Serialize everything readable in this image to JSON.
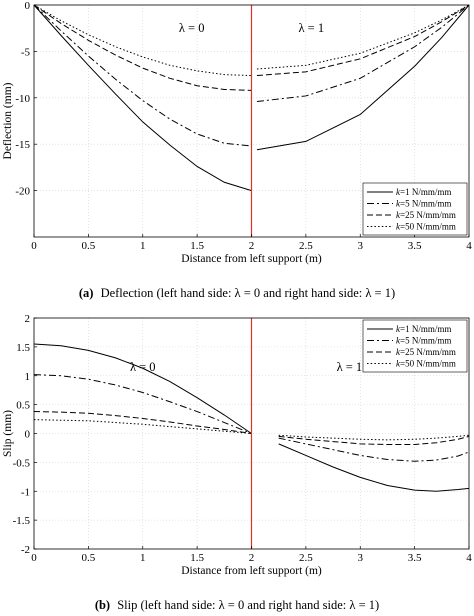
{
  "figure": {
    "panels": [
      {
        "caption_tag": "(a)",
        "caption_text": "Deflection (left hand side: λ = 0 and right hand side: λ = 1)"
      },
      {
        "caption_tag": "(b)",
        "caption_text": "Slip (left hand side: λ = 0 and right hand side: λ = 1)"
      }
    ]
  },
  "chart_data": [
    {
      "type": "line",
      "xlabel": "Distance from left support (m)",
      "ylabel": "Deflection (mm)",
      "xlim": [
        0,
        4
      ],
      "ylim": [
        -25,
        0
      ],
      "xticks": [
        0,
        0.5,
        1,
        1.5,
        2,
        2.5,
        3,
        3.5,
        4
      ],
      "xtick_labels": [
        "0",
        "0.5",
        "1",
        "1.5",
        "2",
        "2.5",
        "3",
        "3.5",
        "4"
      ],
      "yticks": [
        0,
        -5,
        -10,
        -15,
        -20
      ],
      "ytick_labels": [
        "0",
        "-5",
        "-10",
        "-15",
        "-20"
      ],
      "grid": true,
      "legend_position": "bottom-right",
      "vline_x": 2,
      "vline_color": "#d9352a",
      "region_labels": [
        {
          "text": "λ = 0",
          "x": 1.45,
          "y": -2.5
        },
        {
          "text": "λ = 1",
          "x": 2.55,
          "y": -2.5
        }
      ],
      "series": [
        {
          "name": "k=1 N/mm/mm",
          "k_label": "k",
          "rest_label": "=1 N/mm/mm",
          "dash": "solid",
          "x": [
            0,
            0.25,
            0.5,
            0.75,
            1.0,
            1.25,
            1.5,
            1.75,
            2.0,
            2.05,
            2.5,
            3.0,
            3.5,
            3.75,
            4.0
          ],
          "y": [
            0,
            -3.3,
            -6.5,
            -9.6,
            -12.6,
            -15.1,
            -17.4,
            -19.1,
            -20.0,
            -15.6,
            -14.7,
            -11.8,
            -6.6,
            -3.5,
            0
          ]
        },
        {
          "name": "k=5 N/mm/mm",
          "k_label": "k",
          "rest_label": "=5 N/mm/mm",
          "dash": "dashdot",
          "x": [
            0,
            0.25,
            0.5,
            0.75,
            1.0,
            1.25,
            1.5,
            1.75,
            2.0,
            2.05,
            2.5,
            3.0,
            3.5,
            3.75,
            4.0
          ],
          "y": [
            0,
            -2.8,
            -5.5,
            -8.0,
            -10.3,
            -12.3,
            -13.9,
            -14.9,
            -15.2,
            -10.4,
            -9.8,
            -7.9,
            -4.5,
            -2.4,
            0
          ]
        },
        {
          "name": "k=25 N/mm/mm",
          "k_label": "k",
          "rest_label": "=25 N/mm/mm",
          "dash": "dashed",
          "x": [
            0,
            0.25,
            0.5,
            0.75,
            1.0,
            1.25,
            1.5,
            1.75,
            2.0,
            2.05,
            2.5,
            3.0,
            3.5,
            3.75,
            4.0
          ],
          "y": [
            0,
            -2.0,
            -3.8,
            -5.4,
            -6.8,
            -7.9,
            -8.7,
            -9.1,
            -9.2,
            -7.6,
            -7.2,
            -5.8,
            -3.4,
            -1.8,
            0
          ]
        },
        {
          "name": "k=50 N/mm/mm",
          "k_label": "k",
          "rest_label": "=50 N/mm/mm",
          "dash": "dotted",
          "x": [
            0,
            0.25,
            0.5,
            0.75,
            1.0,
            1.25,
            1.5,
            1.75,
            2.0,
            2.05,
            2.5,
            3.0,
            3.5,
            3.75,
            4.0
          ],
          "y": [
            0,
            -1.7,
            -3.2,
            -4.5,
            -5.6,
            -6.5,
            -7.1,
            -7.5,
            -7.6,
            -6.9,
            -6.5,
            -5.2,
            -3.0,
            -1.6,
            0
          ]
        }
      ]
    },
    {
      "type": "line",
      "xlabel": "Distance from left support (m)",
      "ylabel": "Slip (mm)",
      "xlim": [
        0,
        4
      ],
      "ylim": [
        -2,
        2
      ],
      "xticks": [
        0,
        0.5,
        1,
        1.5,
        2,
        2.5,
        3,
        3.5,
        4
      ],
      "xtick_labels": [
        "0",
        "0.5",
        "1",
        "1.5",
        "2",
        "2.5",
        "3",
        "3.5",
        "4"
      ],
      "yticks": [
        2,
        1.5,
        1,
        0.5,
        0,
        -0.5,
        -1,
        -1.5,
        -2
      ],
      "ytick_labels": [
        "2",
        "1.5",
        "1",
        "0.5",
        "0",
        "-0.5",
        "-1",
        "-1.5",
        "-2"
      ],
      "grid": true,
      "legend_position": "top-right",
      "vline_x": 2,
      "vline_color": "#d9352a",
      "region_labels": [
        {
          "text": "λ = 0",
          "x": 1.0,
          "y": 1.15
        },
        {
          "text": "λ = 1",
          "x": 2.9,
          "y": 1.15
        }
      ],
      "series": [
        {
          "name": "k=1 N/mm/mm",
          "k_label": "k",
          "rest_label": "=1 N/mm/mm",
          "dash": "solid",
          "x": [
            0,
            0.25,
            0.5,
            0.75,
            1.0,
            1.25,
            1.5,
            1.75,
            2.0,
            2.25,
            2.5,
            2.75,
            3.0,
            3.25,
            3.5,
            3.7,
            3.9,
            4.0
          ],
          "y": [
            1.55,
            1.52,
            1.44,
            1.31,
            1.13,
            0.9,
            0.62,
            0.32,
            0.0,
            -0.18,
            -0.38,
            -0.58,
            -0.76,
            -0.9,
            -0.98,
            -1.0,
            -0.97,
            -0.95
          ]
        },
        {
          "name": "k=5 N/mm/mm",
          "k_label": "k",
          "rest_label": "=5 N/mm/mm",
          "dash": "dashdot",
          "x": [
            0,
            0.25,
            0.5,
            0.75,
            1.0,
            1.25,
            1.5,
            1.75,
            2.0,
            2.25,
            2.5,
            2.75,
            3.0,
            3.25,
            3.5,
            3.7,
            3.9,
            4.0
          ],
          "y": [
            1.02,
            1.0,
            0.94,
            0.84,
            0.71,
            0.55,
            0.38,
            0.19,
            0.0,
            -0.08,
            -0.18,
            -0.28,
            -0.38,
            -0.45,
            -0.48,
            -0.46,
            -0.39,
            -0.32
          ]
        },
        {
          "name": "k=25 N/mm/mm",
          "k_label": "k",
          "rest_label": "=25 N/mm/mm",
          "dash": "dashed",
          "x": [
            0,
            0.25,
            0.5,
            0.75,
            1.0,
            1.25,
            1.5,
            1.75,
            2.0,
            2.25,
            2.5,
            2.75,
            3.0,
            3.25,
            3.5,
            3.7,
            3.9,
            4.0
          ],
          "y": [
            0.38,
            0.37,
            0.35,
            0.31,
            0.26,
            0.2,
            0.13,
            0.07,
            0.0,
            -0.05,
            -0.1,
            -0.14,
            -0.18,
            -0.19,
            -0.19,
            -0.16,
            -0.1,
            -0.05
          ]
        },
        {
          "name": "k=50 N/mm/mm",
          "k_label": "k",
          "rest_label": "=50 N/mm/mm",
          "dash": "dotted",
          "x": [
            0,
            0.25,
            0.5,
            0.75,
            1.0,
            1.25,
            1.5,
            1.75,
            2.0,
            2.25,
            2.5,
            2.75,
            3.0,
            3.25,
            3.5,
            3.7,
            3.9,
            4.0
          ],
          "y": [
            0.24,
            0.23,
            0.22,
            0.19,
            0.16,
            0.12,
            0.08,
            0.04,
            0.0,
            -0.03,
            -0.06,
            -0.08,
            -0.1,
            -0.11,
            -0.1,
            -0.08,
            -0.05,
            -0.03
          ]
        }
      ]
    }
  ]
}
